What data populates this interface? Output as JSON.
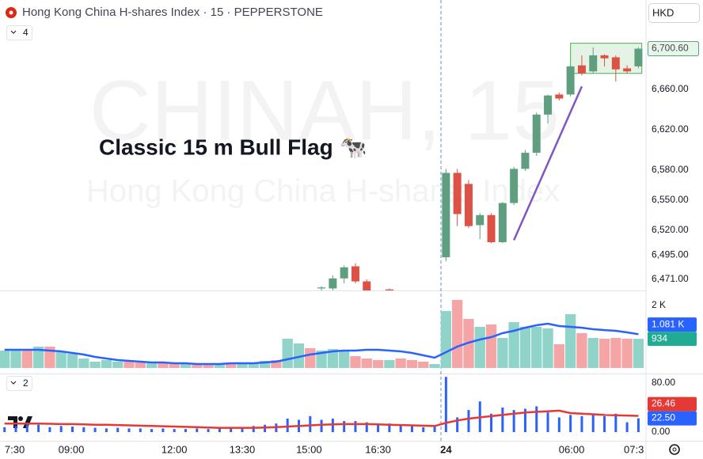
{
  "header": {
    "title": "Hong Kong China H-shares Index · 15 · PEPPERSTONE",
    "currency": "HKD"
  },
  "watermark": {
    "symbol": "CHINAH, 15",
    "name": "Hong Kong China H-shares Index"
  },
  "panes": {
    "main_indicator_count": 4,
    "lower_indicator_count": 2
  },
  "chart_data": [
    {
      "type": "candlestick",
      "xlim": [
        -0.4,
        56.6
      ],
      "ylim": [
        6460,
        6727
      ],
      "yticks": [
        {
          "value": 6471,
          "label": "6,471.00"
        },
        {
          "value": 6495,
          "label": "6,495.00"
        },
        {
          "value": 6520,
          "label": "6,520.00"
        },
        {
          "value": 6550,
          "label": "6,550.00"
        },
        {
          "value": 6580,
          "label": "6,580.00"
        },
        {
          "value": 6620,
          "label": "6,620.00"
        },
        {
          "value": 6660,
          "label": "6,660.00"
        }
      ],
      "x": [
        28,
        29,
        30,
        31,
        32,
        34,
        39,
        40,
        41,
        42,
        43,
        44,
        45,
        46,
        47,
        48,
        49,
        50,
        51,
        52,
        53,
        54,
        55,
        56
      ],
      "open": [
        6462,
        6462,
        6472,
        6484,
        6469,
        6461,
        6493,
        6577,
        6566,
        6525,
        6535,
        6508,
        6547,
        6581,
        6597,
        6635,
        6655,
        6655,
        6684,
        6678,
        6694,
        6692,
        6681,
        6683
      ],
      "high": [
        6464,
        6475,
        6485,
        6487,
        6471,
        6462,
        6581,
        6581,
        6570,
        6537,
        6537,
        6548,
        6583,
        6600,
        6637,
        6655,
        6657,
        6684,
        6694,
        6702,
        6695,
        6694,
        6684,
        6702
      ],
      "low": [
        6460,
        6460,
        6467,
        6467,
        6455,
        6458,
        6489,
        6524,
        6522,
        6511,
        6507,
        6507,
        6545,
        6579,
        6594,
        6626,
        6649,
        6653,
        6674,
        6676,
        6683,
        6668,
        6676,
        6681
      ],
      "close": [
        6463,
        6472,
        6483,
        6469,
        6460,
        6460,
        6577,
        6536,
        6524,
        6535,
        6508,
        6547,
        6581,
        6597,
        6635,
        6654,
        6651,
        6683,
        6676,
        6694,
        6691,
        6680,
        6678,
        6700.6
      ],
      "up_color": "#5f9f80",
      "down_color": "#de5246",
      "last_value_label": "6,700.60",
      "annotation": "Classic 15 m Bull Flag 🐄",
      "trend_line": {
        "x": [
          45,
          51
        ],
        "y": [
          6510,
          6663
        ],
        "color": "#7e57c2"
      },
      "flag_box": {
        "x": [
          50,
          56.3
        ],
        "y": [
          6676,
          6706
        ],
        "color": "#4caf50"
      }
    },
    {
      "type": "bar",
      "xlim": [
        -0.4,
        56.6
      ],
      "ylim": [
        0,
        2456
      ],
      "yticks": [
        {
          "value": 2000,
          "label": "2 K"
        }
      ],
      "x": [
        0,
        1,
        2,
        3,
        4,
        5,
        6,
        7,
        8,
        9,
        10,
        11,
        12,
        13,
        14,
        15,
        16,
        17,
        18,
        19,
        20,
        21,
        22,
        23,
        24,
        25,
        26,
        27,
        28,
        29,
        30,
        31,
        32,
        33,
        34,
        35,
        36,
        37,
        38,
        39,
        40,
        41,
        42,
        43,
        44,
        45,
        46,
        47,
        48,
        49,
        50,
        51,
        52,
        53,
        54,
        55,
        56
      ],
      "series": [
        {
          "kind": "bar",
          "values": [
            557,
            557,
            557,
            684,
            684,
            506,
            456,
            304,
            203,
            253,
            203,
            203,
            177,
            152,
            152,
            152,
            127,
            101,
            127,
            127,
            127,
            127,
            177,
            228,
            253,
            937,
            785,
            633,
            557,
            608,
            582,
            380,
            304,
            253,
            253,
            304,
            253,
            203,
            127,
            1823,
            2177,
            1570,
            1316,
            1392,
            962,
            1468,
            1316,
            1316,
            1266,
            759,
            1722,
            1114,
            962,
            937,
            962,
            937,
            934
          ],
          "colors": [
            "#8fd3c9",
            "#8fd3c9",
            "#f5a5a5",
            "#8fd3c9",
            "#f5a5a5",
            "#8fd3c9",
            "#8fd3c9",
            "#8fd3c9",
            "#8fd3c9",
            "#8fd3c9",
            "#8fd3c9",
            "#f5a5a5",
            "#f5a5a5",
            "#8fd3c9",
            "#f5a5a5",
            "#f5a5a5",
            "#8fd3c9",
            "#f5a5a5",
            "#f5a5a5",
            "#8fd3c9",
            "#f5a5a5",
            "#8fd3c9",
            "#8fd3c9",
            "#8fd3c9",
            "#f5a5a5",
            "#8fd3c9",
            "#8fd3c9",
            "#f5a5a5",
            "#8fd3c9",
            "#8fd3c9",
            "#8fd3c9",
            "#f5a5a5",
            "#f5a5a5",
            "#f5a5a5",
            "#8fd3c9",
            "#f5a5a5",
            "#f5a5a5",
            "#f5a5a5",
            "#8fd3c9",
            "#8fd3c9",
            "#f5a5a5",
            "#f5a5a5",
            "#8fd3c9",
            "#f5a5a5",
            "#8fd3c9",
            "#8fd3c9",
            "#8fd3c9",
            "#8fd3c9",
            "#8fd3c9",
            "#f5a5a5",
            "#8fd3c9",
            "#f5a5a5",
            "#8fd3c9",
            "#f5a5a5",
            "#f5a5a5",
            "#f5a5a5",
            "#8fd3c9"
          ],
          "label_color": "#22ab94",
          "last_value_label": "934"
        },
        {
          "kind": "line",
          "color": "#2962ff",
          "values": [
            582,
            582,
            582,
            582,
            557,
            531,
            481,
            430,
            354,
            304,
            253,
            228,
            202,
            177,
            177,
            152,
            152,
            127,
            127,
            127,
            152,
            152,
            152,
            177,
            202,
            278,
            354,
            430,
            481,
            531,
            557,
            557,
            582,
            582,
            557,
            531,
            481,
            405,
            329,
            506,
            683,
            810,
            911,
            987,
            1113,
            1189,
            1290,
            1366,
            1417,
            1341,
            1316,
            1290,
            1240,
            1214,
            1189,
            1139,
            1081
          ],
          "last_value_label": "1.081 K"
        }
      ]
    },
    {
      "type": "bar",
      "xlim": [
        -0.4,
        56.6
      ],
      "ylim": [
        -11.6,
        91.6
      ],
      "yticks": [
        {
          "value": 0,
          "label": "0.00"
        },
        {
          "value": 80,
          "label": "80.00"
        }
      ],
      "xticks": [
        {
          "value": 0.9,
          "label": "7:30"
        },
        {
          "value": 5.9,
          "label": "09:00"
        },
        {
          "value": 15,
          "label": "12:00"
        },
        {
          "value": 21,
          "label": "13:30"
        },
        {
          "value": 26.9,
          "label": "15:00"
        },
        {
          "value": 33,
          "label": "16:30"
        },
        {
          "value": 39,
          "label": "24"
        },
        {
          "value": 50.1,
          "label": "06:00"
        },
        {
          "value": 55.6,
          "label": "07:3"
        }
      ],
      "x": [
        0,
        1,
        2,
        3,
        4,
        5,
        6,
        7,
        8,
        9,
        10,
        11,
        12,
        13,
        14,
        15,
        16,
        17,
        18,
        19,
        20,
        21,
        22,
        23,
        24,
        25,
        26,
        27,
        28,
        29,
        30,
        31,
        32,
        33,
        34,
        35,
        36,
        37,
        38,
        39,
        40,
        41,
        42,
        43,
        44,
        45,
        46,
        47,
        48,
        49,
        50,
        51,
        52,
        53,
        54,
        55,
        56
      ],
      "series": [
        {
          "kind": "bar",
          "color": "#2962ff",
          "values": [
            8,
            10,
            12,
            12,
            8,
            10,
            9,
            8,
            7,
            6,
            7,
            6,
            6,
            5,
            6,
            5,
            5,
            6,
            5,
            6,
            6,
            8,
            10,
            12,
            14,
            22,
            20,
            26,
            20,
            22,
            18,
            18,
            16,
            12,
            14,
            12,
            10,
            8,
            10,
            90,
            24,
            36,
            50,
            30,
            40,
            36,
            38,
            42,
            32,
            24,
            28,
            26,
            30,
            26,
            30,
            16,
            22.5
          ],
          "last_value_label": "22.50"
        },
        {
          "kind": "line",
          "color": "#e53935",
          "values": [
            14,
            14,
            14,
            14,
            13.5,
            13,
            13,
            12.5,
            12,
            12,
            11.5,
            11,
            10.5,
            10,
            9.5,
            9,
            8.5,
            8,
            7.5,
            7,
            7,
            7,
            7,
            7.5,
            8,
            9,
            10,
            11,
            12,
            12.5,
            13,
            13,
            13,
            12.5,
            12,
            11.5,
            11,
            10.5,
            10,
            15,
            19,
            22,
            24,
            26,
            28,
            30,
            32,
            33,
            34,
            35,
            31,
            30,
            29,
            28,
            27.5,
            27,
            26.46
          ],
          "last_value_label": "26.46"
        }
      ]
    }
  ]
}
